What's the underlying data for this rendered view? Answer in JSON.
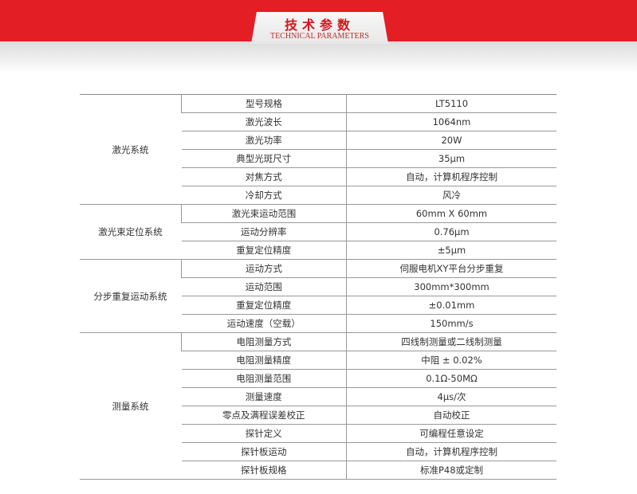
{
  "header": {
    "title_zh": "技术参数",
    "title_en": "TECHNICAL PARAMETERS",
    "accent": "#e31e25"
  },
  "groups": [
    {
      "name": "激光系统",
      "rows": [
        [
          "型号规格",
          "LT5110"
        ],
        [
          "激光波长",
          "1064nm"
        ],
        [
          "激光功率",
          "20W"
        ],
        [
          "典型光斑尺寸",
          "35μm"
        ],
        [
          "对焦方式",
          "自动，计算机程序控制"
        ],
        [
          "冷却方式",
          "风冷"
        ]
      ]
    },
    {
      "name": "激光束定位系统",
      "rows": [
        [
          "激光束运动范围",
          "60mm X 60mm"
        ],
        [
          "运动分辨率",
          "0.76μm"
        ],
        [
          "重复定位精度",
          "±5μm"
        ]
      ]
    },
    {
      "name": "分步重复运动系统",
      "rows": [
        [
          "运动方式",
          "伺服电机XY平台分步重复"
        ],
        [
          "运动范围",
          "300mm*300mm"
        ],
        [
          "重复定位精度",
          "±0.01mm"
        ],
        [
          "运动速度（空载）",
          "150mm/s"
        ]
      ]
    },
    {
      "name": "测量系统",
      "rows": [
        [
          "电阻测量方式",
          "四线制测量或二线制测量"
        ],
        [
          "电阻测量精度",
          "中阻 ± 0.02%"
        ],
        [
          "电阻测量范围",
          "0.1Ω-50MΩ"
        ],
        [
          "测量速度",
          "4μs/次"
        ],
        [
          "零点及满程误差校正",
          "自动校正"
        ],
        [
          "探针定义",
          "可编程任意设定"
        ],
        [
          "探针板运动",
          "自动，计算机程序控制"
        ],
        [
          "探针板规格",
          "标准P48或定制"
        ]
      ]
    }
  ]
}
